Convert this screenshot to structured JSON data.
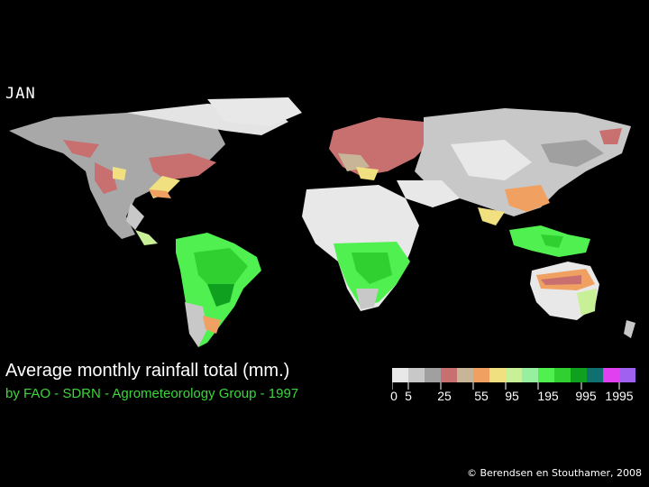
{
  "month": "JAN",
  "title": "Average monthly rainfall total (mm.)",
  "subtitle": "by FAO - SDRN - Agrometeorology Group - 1997",
  "legend": {
    "colors": [
      "#e8e8e8",
      "#c8c8c8",
      "#a0a0a0",
      "#c87070",
      "#c8b496",
      "#f0a060",
      "#f0e080",
      "#c8f096",
      "#96f0a0",
      "#50f050",
      "#30d030",
      "#10a020",
      "#107070",
      "#e040f0",
      "#a060f0"
    ],
    "labels": [
      "0",
      "5",
      "25",
      "55",
      "95",
      "195",
      "995",
      "1995"
    ]
  },
  "credit": "© Berendsen en Stouthamer, 2008"
}
